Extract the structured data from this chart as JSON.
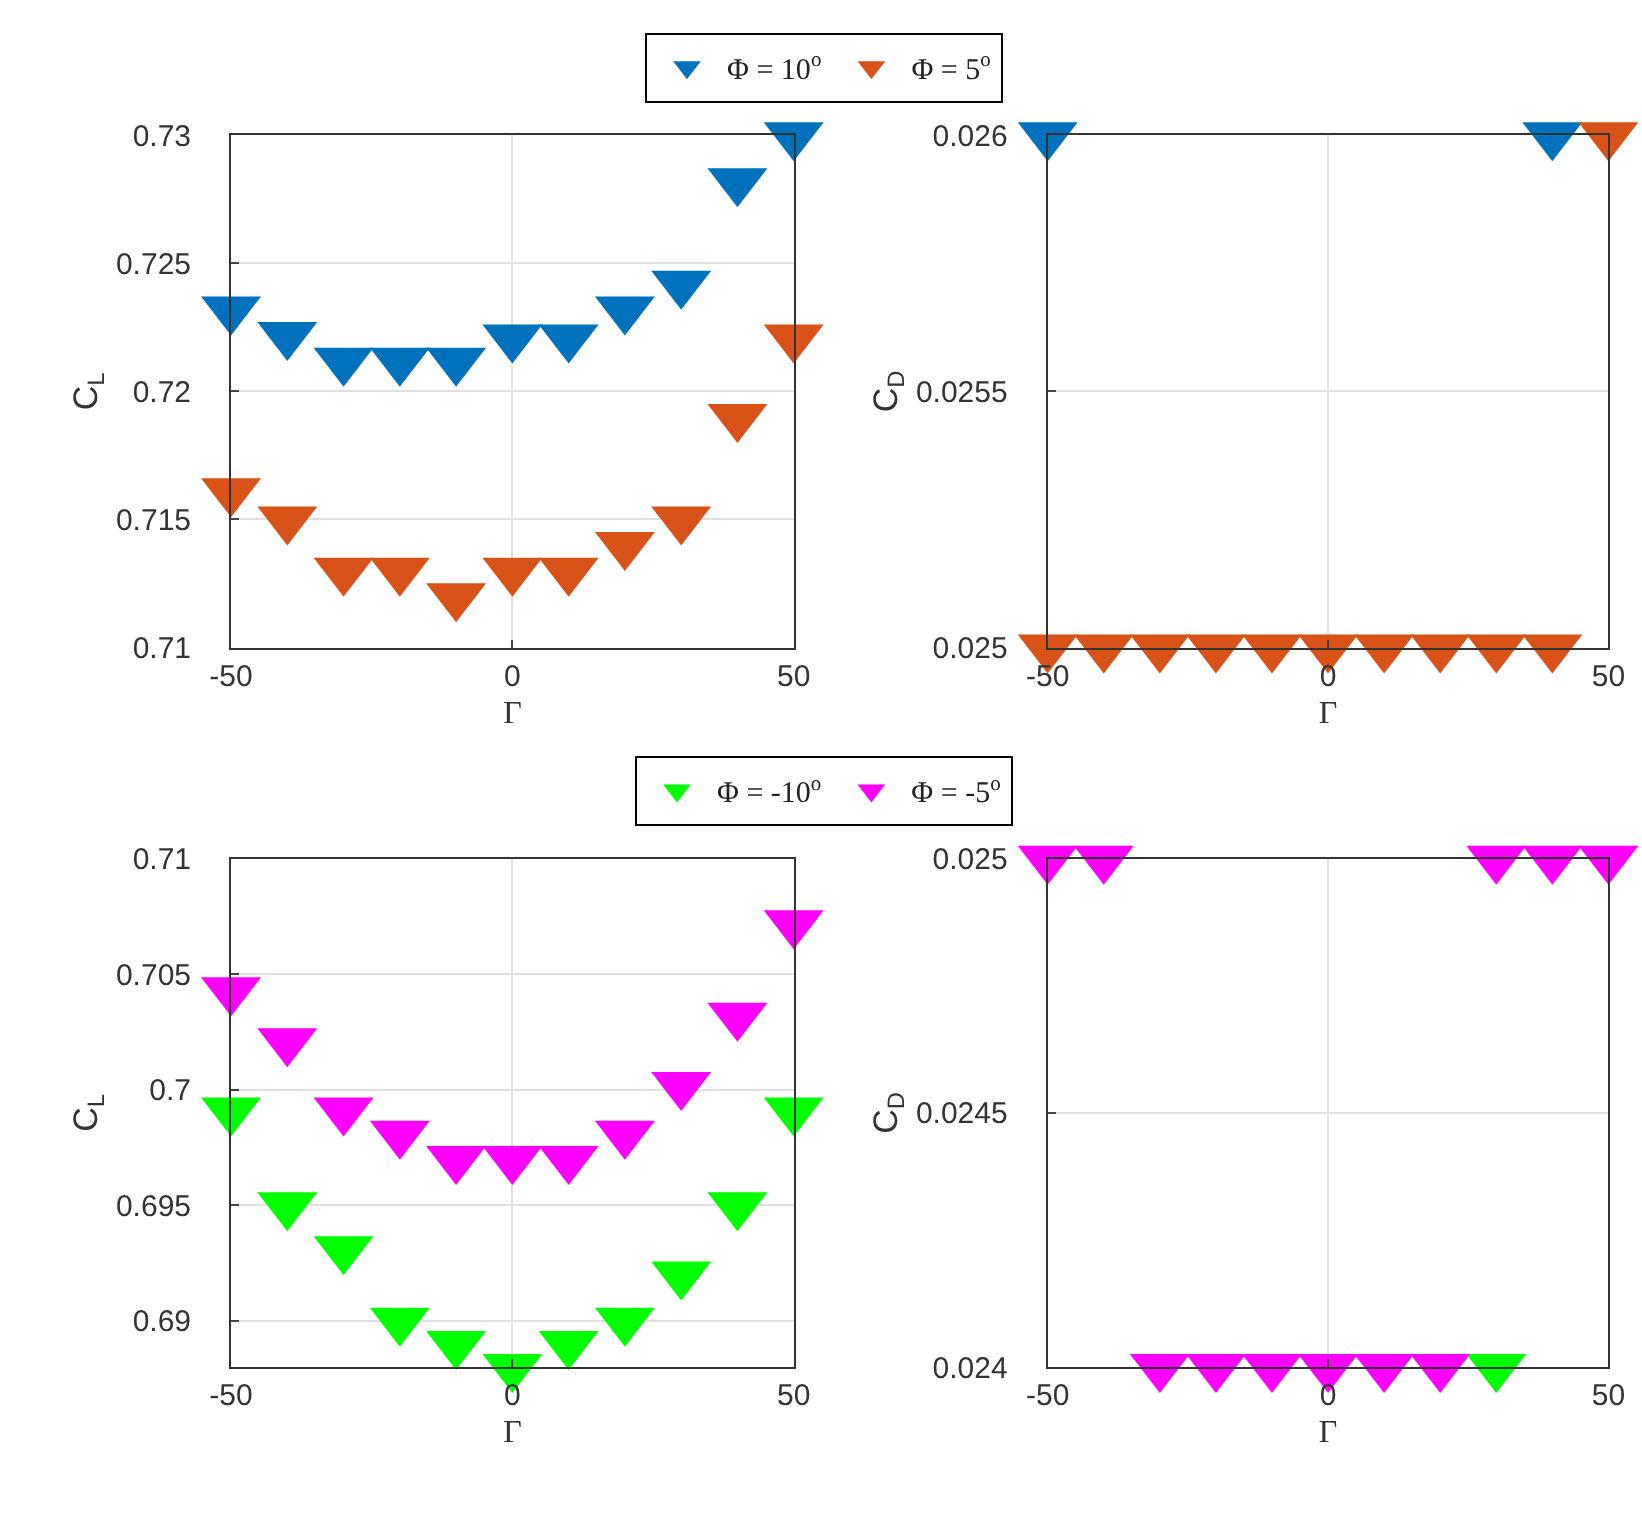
{
  "chart_data": [
    {
      "type": "scatter",
      "xlabel": "Γ",
      "ylabel": "C$_{L}$",
      "x": [
        -50,
        -40,
        -30,
        -20,
        -10,
        0,
        10,
        20,
        30,
        40,
        50
      ],
      "xlim": [
        -50,
        50
      ],
      "xticks": [
        -50,
        0,
        50
      ],
      "ylim": [
        0.71,
        0.73
      ],
      "yticks": [
        0.71,
        0.715,
        0.72,
        0.725,
        0.73
      ],
      "grid": true,
      "marker": "triangle",
      "legend": "top",
      "series": [
        {
          "name": "Φ = 10$^{o}$",
          "color": "#0072bd",
          "values": [
            0.7232,
            0.7222,
            0.7212,
            0.7212,
            0.7212,
            0.7221,
            0.7221,
            0.7232,
            0.7242,
            0.7282,
            0.73
          ]
        },
        {
          "name": "Φ = 5$^{o}$",
          "color": "#d95319",
          "values": [
            0.7161,
            0.715,
            0.713,
            0.713,
            0.712,
            0.713,
            0.713,
            0.714,
            0.715,
            0.719,
            0.7221
          ]
        }
      ]
    },
    {
      "type": "scatter",
      "xlabel": "Γ",
      "ylabel": "C$_{D}$",
      "x": [
        -50,
        -40,
        -30,
        -20,
        -10,
        0,
        10,
        20,
        30,
        40,
        50
      ],
      "xlim": [
        -50,
        50
      ],
      "xticks": [
        -50,
        0,
        50
      ],
      "ylim": [
        0.025,
        0.026
      ],
      "yticks": [
        0.025,
        0.0255,
        0.026
      ],
      "grid": true,
      "marker": "triangle",
      "series": [
        {
          "color": "#0072bd",
          "values": [
            0.026,
            null,
            null,
            null,
            null,
            null,
            null,
            null,
            null,
            0.026,
            null
          ]
        },
        {
          "color": "#d95319",
          "values": [
            0.025,
            0.025,
            0.025,
            0.025,
            0.025,
            0.025,
            0.025,
            0.025,
            0.025,
            0.025,
            0.026
          ]
        }
      ]
    },
    {
      "type": "scatter",
      "xlabel": "Γ",
      "ylabel": "C$_{L}$",
      "x": [
        -50,
        -40,
        -30,
        -20,
        -10,
        0,
        10,
        20,
        30,
        40,
        50
      ],
      "xlim": [
        -50,
        50
      ],
      "xticks": [
        -50,
        0,
        50
      ],
      "ylim": [
        0.688,
        0.71
      ],
      "yticks": [
        0.69,
        0.695,
        0.7,
        0.705,
        0.71
      ],
      "grid": true,
      "marker": "triangle",
      "legend": "top",
      "series": [
        {
          "name": "Φ = -10$^{o}$",
          "color": "#00ff00",
          "values": [
            0.6991,
            0.695,
            0.6931,
            0.69,
            0.689,
            0.688,
            0.689,
            0.69,
            0.692,
            0.695,
            0.6991
          ]
        },
        {
          "name": "Φ = -5$^{o}$",
          "color": "#ff00ff",
          "values": [
            0.7043,
            0.7021,
            0.6991,
            0.6981,
            0.697,
            0.697,
            0.697,
            0.6981,
            0.7002,
            0.7032,
            0.7072
          ]
        }
      ]
    },
    {
      "type": "scatter",
      "xlabel": "Γ",
      "ylabel": "C$_{D}$",
      "x": [
        -50,
        -40,
        -30,
        -20,
        -10,
        0,
        10,
        20,
        30,
        40,
        50
      ],
      "xlim": [
        -50,
        50
      ],
      "xticks": [
        -50,
        0,
        50
      ],
      "ylim": [
        0.024,
        0.025
      ],
      "yticks": [
        0.024,
        0.0245,
        0.025
      ],
      "grid": true,
      "marker": "triangle",
      "series": [
        {
          "color": "#00ff00",
          "values": [
            null,
            null,
            null,
            null,
            null,
            null,
            null,
            null,
            0.024,
            null,
            null
          ]
        },
        {
          "color": "#ff00ff",
          "values": [
            0.025,
            0.025,
            0.024,
            0.024,
            0.024,
            0.024,
            0.024,
            0.024,
            0.025,
            0.025,
            0.025
          ]
        }
      ]
    }
  ]
}
